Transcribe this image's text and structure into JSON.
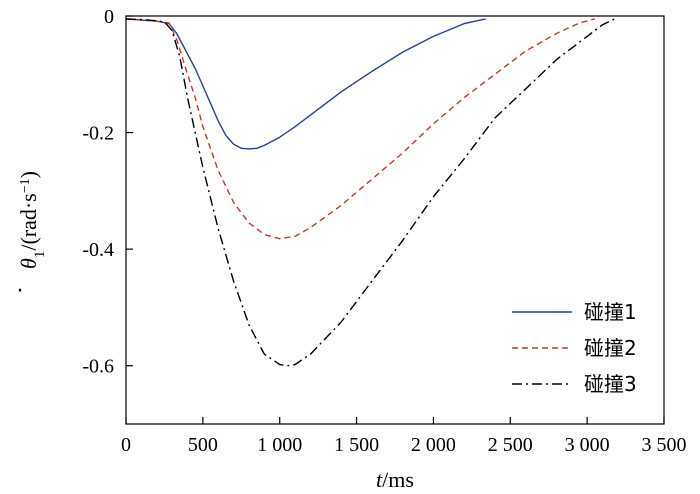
{
  "chart_data": {
    "type": "line",
    "xlabel_italic": "t",
    "xlabel_rest": "/ms",
    "ylabel_symbol": "θ",
    "ylabel_subscript": "1",
    "ylabel_rest": "/(rad·s",
    "ylabel_superscript": "−1",
    "ylabel_close": ")",
    "xlim": [
      0,
      3500
    ],
    "ylim": [
      -0.7,
      0
    ],
    "x_ticks": [
      0,
      500,
      1000,
      1500,
      2000,
      2500,
      3000,
      3500
    ],
    "x_tick_labels": [
      "0",
      "500",
      "1 000",
      "1 500",
      "2 000",
      "2 500",
      "3 000",
      "3 500"
    ],
    "y_ticks": [
      0,
      -0.2,
      -0.4,
      -0.6
    ],
    "y_tick_labels": [
      "0",
      "-0.2",
      "-0.4",
      "-0.6"
    ],
    "grid": false,
    "legend_position": "bottom-right",
    "series": [
      {
        "name": "碰撞1",
        "color": "#2b3f9e",
        "dash": "solid",
        "x": [
          0,
          100,
          200,
          280,
          330,
          400,
          450,
          500,
          550,
          600,
          650,
          700,
          750,
          800,
          850,
          900,
          1000,
          1100,
          1200,
          1400,
          1600,
          1800,
          2000,
          2200,
          2340
        ],
        "y": [
          -0.005,
          -0.007,
          -0.009,
          -0.013,
          -0.03,
          -0.065,
          -0.09,
          -0.12,
          -0.15,
          -0.18,
          -0.205,
          -0.22,
          -0.227,
          -0.228,
          -0.227,
          -0.222,
          -0.208,
          -0.19,
          -0.17,
          -0.13,
          -0.095,
          -0.062,
          -0.035,
          -0.013,
          -0.005
        ]
      },
      {
        "name": "碰撞2",
        "color": "#c0392b",
        "dash": "dashed",
        "x": [
          0,
          150,
          280,
          330,
          400,
          450,
          500,
          600,
          700,
          800,
          900,
          1000,
          1100,
          1200,
          1400,
          1600,
          1800,
          2000,
          2200,
          2400,
          2600,
          2800,
          2950,
          3050
        ],
        "y": [
          -0.005,
          -0.007,
          -0.012,
          -0.04,
          -0.1,
          -0.14,
          -0.19,
          -0.265,
          -0.32,
          -0.355,
          -0.375,
          -0.382,
          -0.378,
          -0.363,
          -0.325,
          -0.28,
          -0.235,
          -0.185,
          -0.14,
          -0.1,
          -0.06,
          -0.03,
          -0.012,
          -0.005
        ]
      },
      {
        "name": "碰撞3",
        "color": "#000000",
        "dash": "dashdot",
        "x": [
          0,
          150,
          250,
          300,
          350,
          400,
          450,
          500,
          600,
          700,
          800,
          900,
          1000,
          1050,
          1100,
          1200,
          1400,
          1600,
          1800,
          2000,
          2200,
          2400,
          2600,
          2800,
          3000,
          3100,
          3180
        ],
        "y": [
          -0.005,
          -0.007,
          -0.01,
          -0.025,
          -0.07,
          -0.14,
          -0.2,
          -0.26,
          -0.365,
          -0.455,
          -0.53,
          -0.58,
          -0.598,
          -0.6,
          -0.598,
          -0.58,
          -0.525,
          -0.455,
          -0.385,
          -0.31,
          -0.245,
          -0.175,
          -0.125,
          -0.075,
          -0.035,
          -0.015,
          -0.005
        ]
      }
    ]
  }
}
